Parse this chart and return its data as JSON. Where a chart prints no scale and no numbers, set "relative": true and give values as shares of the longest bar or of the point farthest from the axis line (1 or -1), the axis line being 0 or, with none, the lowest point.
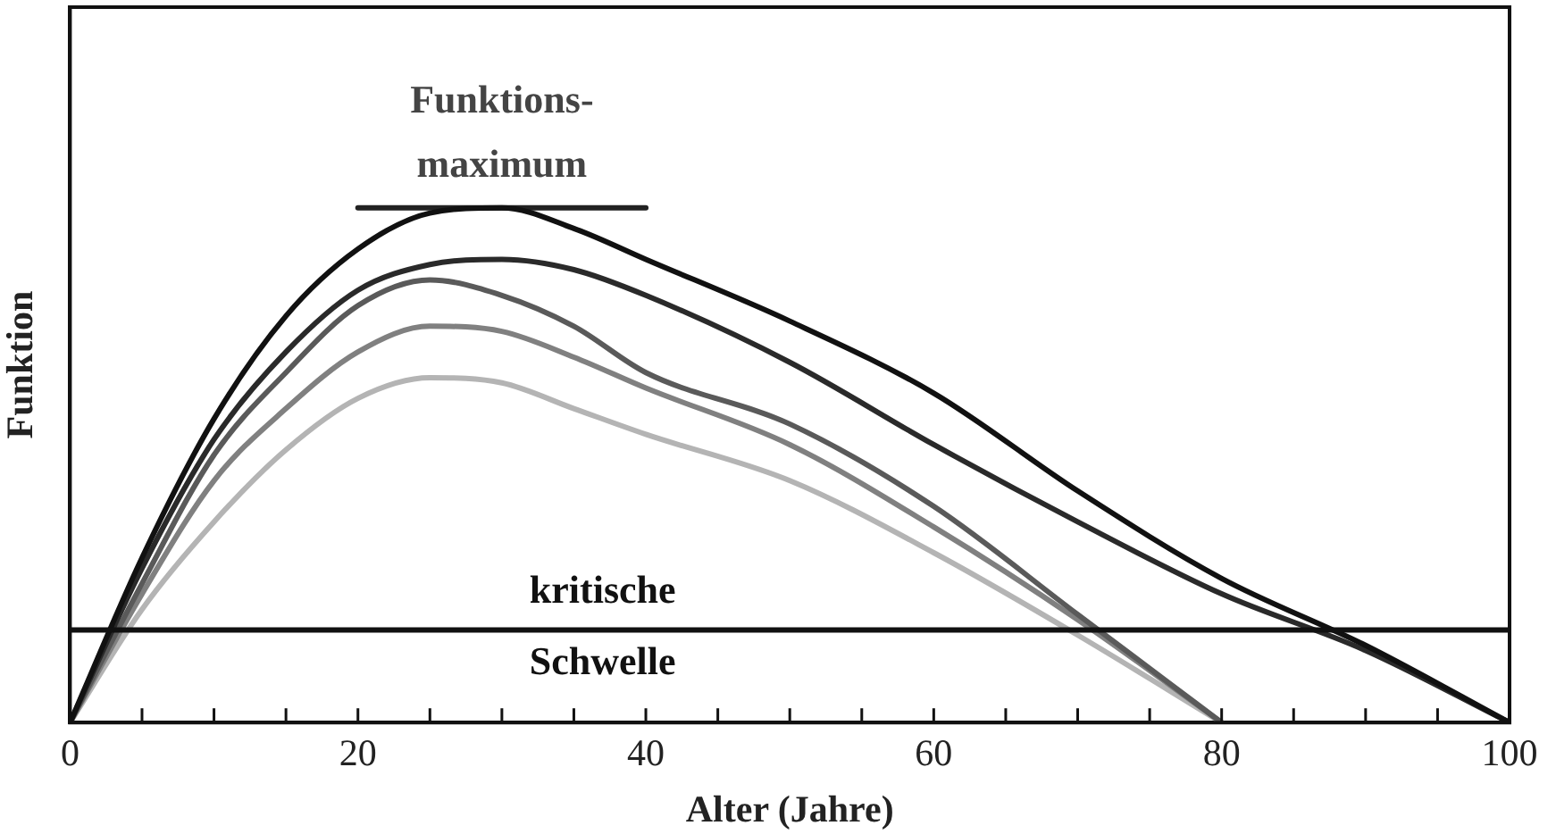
{
  "chart_data": {
    "type": "line",
    "relative": true,
    "xlabel": "Alter (Jahre)",
    "ylabel": "Funktion",
    "xlim": [
      0,
      100
    ],
    "xticks": [
      0,
      {
        "value": 5,
        "label": null
      },
      {
        "value": 10,
        "label": null
      },
      {
        "value": 15,
        "label": null
      },
      20,
      {
        "value": 25,
        "label": null
      },
      {
        "value": 30,
        "label": null
      },
      {
        "value": 35,
        "label": null
      },
      40,
      {
        "value": 45,
        "label": null
      },
      {
        "value": 50,
        "label": null
      },
      {
        "value": 55,
        "label": null
      },
      60,
      {
        "value": 65,
        "label": null
      },
      {
        "value": 70,
        "label": null
      },
      {
        "value": 75,
        "label": null
      },
      80,
      {
        "value": 85,
        "label": null
      },
      {
        "value": 90,
        "label": null
      },
      {
        "value": 95,
        "label": null
      },
      100
    ],
    "tick_labels": "x",
    "grid": false,
    "legend": false,
    "marker": "none",
    "line_style": "solid",
    "series": [
      {
        "color": "#111111",
        "x": [
          0,
          5,
          10,
          15,
          20,
          25,
          30,
          35,
          40,
          50,
          60,
          70,
          80,
          90,
          100
        ],
        "values": [
          0,
          0.32,
          0.59,
          0.79,
          0.92,
          0.99,
          1.0,
          0.96,
          0.9,
          0.78,
          0.64,
          0.45,
          0.28,
          0.15,
          0
        ]
      },
      {
        "color": "#2a2a2a",
        "x": [
          0,
          5,
          10,
          15,
          20,
          25,
          30,
          35,
          40,
          50,
          60,
          70,
          80,
          90,
          100
        ],
        "values": [
          0,
          0.3,
          0.55,
          0.72,
          0.84,
          0.89,
          0.9,
          0.88,
          0.83,
          0.7,
          0.54,
          0.39,
          0.25,
          0.14,
          0
        ]
      },
      {
        "color": "#5a5a5a",
        "x": [
          0,
          5,
          10,
          15,
          20,
          25,
          30,
          35,
          40,
          50,
          60,
          70,
          80
        ],
        "values": [
          0,
          0.27,
          0.52,
          0.68,
          0.81,
          0.86,
          0.83,
          0.77,
          0.68,
          0.58,
          0.42,
          0.21,
          0
        ]
      },
      {
        "color": "#808080",
        "x": [
          0,
          5,
          10,
          15,
          20,
          25,
          30,
          35,
          40,
          50,
          60,
          70,
          80
        ],
        "values": [
          0,
          0.25,
          0.47,
          0.61,
          0.72,
          0.77,
          0.76,
          0.71,
          0.65,
          0.54,
          0.38,
          0.2,
          0
        ]
      },
      {
        "color": "#b4b4b4",
        "x": [
          0,
          5,
          10,
          15,
          20,
          25,
          30,
          35,
          40,
          50,
          60,
          70,
          80
        ],
        "values": [
          0,
          0.22,
          0.39,
          0.53,
          0.63,
          0.67,
          0.66,
          0.61,
          0.56,
          0.47,
          0.33,
          0.17,
          0
        ]
      },
      {
        "type": "line",
        "color": "#222222",
        "x": [
          20,
          40
        ],
        "values": [
          1.0,
          1.0
        ]
      }
    ],
    "ref_lines": [
      {
        "axis": "y",
        "value": 0.18,
        "label": "kritische Schwelle",
        "color": "#111111"
      }
    ],
    "annotations": [
      {
        "text": "Funktions-\nmaximum",
        "x": 30,
        "y": 1.0
      }
    ]
  }
}
